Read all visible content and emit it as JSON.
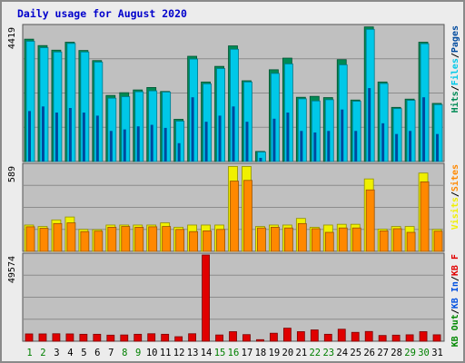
{
  "chart_data": {
    "type": "bar",
    "title": "Daily usage for August 2020",
    "colors": {
      "background": "#ececec",
      "plot": "#c0c0c0",
      "title": "#0000cc",
      "hits": "#008a55",
      "files": "#00c8e8",
      "pages": "#004a9e",
      "visits": "#f0f000",
      "sites": "#ff8800",
      "kb_in": "#0050e0",
      "kb_out": "#008800",
      "kb_f": "#e00000",
      "day_weekday": "#000000",
      "day_weekend": "#008000"
    },
    "days": [
      "1",
      "2",
      "3",
      "4",
      "5",
      "6",
      "7",
      "8",
      "9",
      "10",
      "11",
      "12",
      "13",
      "14",
      "15",
      "16",
      "17",
      "18",
      "19",
      "20",
      "21",
      "22",
      "23",
      "24",
      "25",
      "26",
      "27",
      "28",
      "29",
      "30",
      "31"
    ],
    "weekend_days": [
      "1",
      "2",
      "8",
      "9",
      "15",
      "16",
      "22",
      "23",
      "29",
      "30"
    ],
    "panels": [
      {
        "id": "hits",
        "scale_label": "4419",
        "ylim": [
          0,
          4419
        ],
        "legend": [
          {
            "key": "pages",
            "text": "Pages"
          },
          {
            "key": "sep",
            "text": "/"
          },
          {
            "key": "files",
            "text": "Files"
          },
          {
            "key": "sep",
            "text": "/"
          },
          {
            "key": "hits",
            "text": "Hits"
          }
        ],
        "series": [
          {
            "name": "Hits",
            "key": "hits",
            "values": [
              4000,
              3790,
              3640,
              3900,
              3630,
              3300,
              2160,
              2250,
              2340,
              2420,
              2290,
              1380,
              3440,
              2600,
              3110,
              3780,
              2640,
              330,
              3000,
              3380,
              2100,
              2130,
              2090,
              3330,
              2010,
              4400,
              2600,
              1770,
              2040,
              3900,
              1900
            ]
          },
          {
            "name": "Files",
            "key": "files",
            "values": [
              3930,
              3720,
              3580,
              3860,
              3580,
              3250,
              2070,
              2120,
              2280,
              2310,
              2270,
              1320,
              3350,
              2540,
              3040,
              3670,
              2600,
              310,
              2880,
              3190,
              2050,
              1980,
              2020,
              3160,
              1970,
              4320,
              2550,
              1730,
              2000,
              3850,
              1860
            ]
          },
          {
            "name": "Pages",
            "key": "pages",
            "values": [
              1650,
              1800,
              1600,
              1750,
              1600,
              1500,
              1000,
              1050,
              1150,
              1200,
              1100,
              600,
              2100,
              1300,
              1500,
              1800,
              1300,
              120,
              1400,
              1600,
              1000,
              950,
              1000,
              1700,
              1000,
              2400,
              1250,
              900,
              1000,
              2100,
              900
            ]
          }
        ]
      },
      {
        "id": "visits",
        "scale_label": "589",
        "ylim": [
          0,
          589
        ],
        "legend": [
          {
            "key": "sites",
            "text": "Sites"
          },
          {
            "key": "sep",
            "text": "/"
          },
          {
            "key": "visits",
            "text": "Visits"
          }
        ],
        "series": [
          {
            "name": "Visits",
            "key": "visits",
            "values": [
              180,
              170,
              215,
              235,
              150,
              148,
              180,
              180,
              180,
              180,
              195,
              165,
              180,
              180,
              180,
              580,
              580,
              170,
              180,
              180,
              225,
              165,
              180,
              185,
              185,
              495,
              152,
              170,
              170,
              535,
              150
            ]
          },
          {
            "name": "Sites",
            "key": "sites",
            "values": [
              168,
              158,
              190,
              195,
              135,
              138,
              165,
              170,
              165,
              168,
              170,
              150,
              135,
              140,
              150,
              480,
              485,
              160,
              165,
              160,
              190,
              155,
              130,
              160,
              160,
              420,
              140,
              155,
              130,
              475,
              138
            ]
          }
        ]
      },
      {
        "id": "kbytes",
        "scale_label": "49574",
        "ylim": [
          0,
          49574
        ],
        "legend": [
          {
            "key": "kb_f",
            "text": "KB F"
          },
          {
            "key": "sep",
            "text": "/"
          },
          {
            "key": "kb_in",
            "text": "KB In"
          },
          {
            "key": "sep",
            "text": "/"
          },
          {
            "key": "kb_out",
            "text": "KB Out"
          }
        ],
        "series": [
          {
            "name": "KB F",
            "key": "kb_f",
            "values": [
              4200,
              4200,
              4300,
              4200,
              4000,
              4000,
              3500,
              3600,
              4000,
              4300,
              4000,
              2600,
              4300,
              49574,
              3600,
              5500,
              3800,
              900,
              4600,
              7500,
              5500,
              6500,
              4000,
              6900,
              5100,
              5600,
              3300,
              3500,
              3700,
              5500,
              3700
            ]
          }
        ]
      }
    ]
  }
}
